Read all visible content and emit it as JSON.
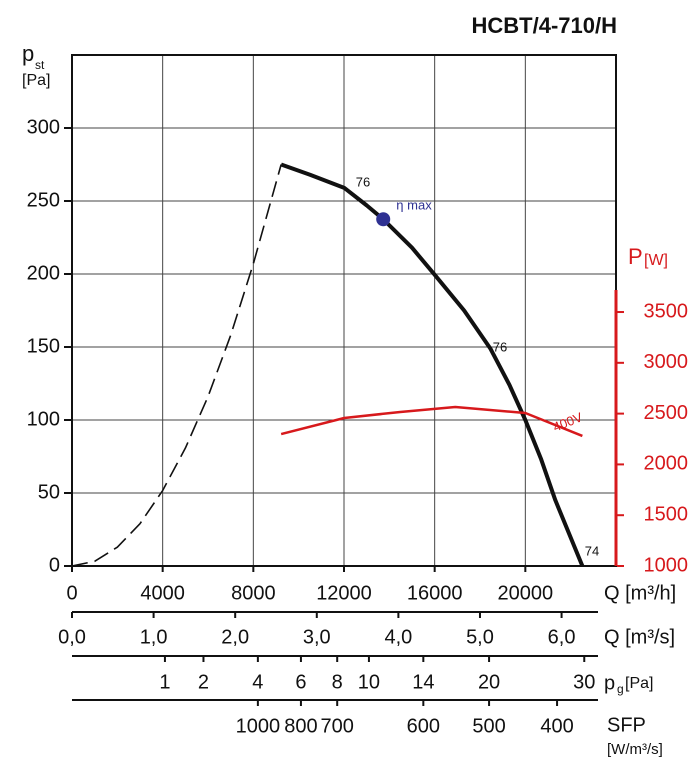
{
  "chart_data": {
    "type": "line",
    "title": "HCBT/4-710/H",
    "x_label": "Q [m³/h]",
    "y_label": {
      "text": "p",
      "sub": "st",
      "unit": "[Pa]"
    },
    "y2_label": {
      "text": "P",
      "unit": "[W]"
    },
    "xlim": [
      0,
      24000
    ],
    "xticks": [
      0,
      4000,
      8000,
      12000,
      16000,
      20000
    ],
    "ylim": [
      0,
      350
    ],
    "yticks": [
      0,
      50,
      100,
      150,
      200,
      250,
      300
    ],
    "y2lim": [
      1000,
      6030
    ],
    "y2ticks": [
      1000,
      1500,
      2000,
      2500,
      3000,
      3500
    ],
    "grid": true,
    "series": [
      {
        "color": "#111111",
        "dash": false,
        "x": [
          9227,
          10500,
          12009,
          13000,
          13730,
          15000,
          16026,
          17300,
          18455,
          19300,
          20000,
          20700,
          21325,
          22517
        ],
        "values": [
          275,
          268,
          259,
          247,
          237.5,
          218,
          199,
          175,
          149,
          124,
          100,
          73,
          45,
          0
        ]
      },
      {
        "color": "#111111",
        "dash": true,
        "x": [
          0,
          1000,
          2000,
          3000,
          4000,
          5000,
          6000,
          7000,
          8000,
          9227
        ],
        "values": [
          0,
          3.2,
          12.9,
          29,
          51.7,
          80.7,
          116,
          158,
          207,
          275
        ]
      },
      {
        "name": "400V",
        "color": "#d7191c",
        "dash": false,
        "axis": "y2",
        "x": [
          9227,
          12009,
          14481,
          16910,
          20000,
          22517
        ],
        "values": [
          2299,
          2457,
          2516,
          2565,
          2506,
          2280
        ]
      },
      {
        "color": "#2e3192",
        "marker": "circle",
        "x": [
          13730
        ],
        "values": [
          237.5
        ]
      }
    ],
    "annotations": [
      "76",
      "η max",
      "76",
      "74"
    ],
    "secondary_axes": [
      {
        "label": "Q [m³/s]",
        "xlim": [
          0,
          6.667
        ],
        "xticks": [
          {
            "value": 0,
            "label": "0,0"
          },
          {
            "value": 1,
            "label": "1,0"
          },
          {
            "value": 2,
            "label": "2,0"
          },
          {
            "value": 3,
            "label": "3,0"
          },
          {
            "value": 4,
            "label": "4,0"
          },
          {
            "value": 5,
            "label": "5,0"
          },
          {
            "value": 6,
            "label": "6,0"
          }
        ]
      },
      {
        "label": {
          "text": "p",
          "sub": "g",
          "unit": "[Pa]"
        },
        "q": [
          4100,
          5800,
          8200,
          10100,
          11700,
          13100,
          15500,
          18400,
          22600
        ],
        "values": [
          1,
          2,
          4,
          6,
          8,
          10,
          14,
          20,
          30
        ]
      },
      {
        "label": {
          "text": "SFP",
          "unit": "[W/m³/s]"
        },
        "q": [
          8200,
          10100,
          11700,
          15500,
          18400,
          21400
        ],
        "values": [
          1000,
          800,
          700,
          600,
          500,
          400
        ]
      }
    ]
  }
}
